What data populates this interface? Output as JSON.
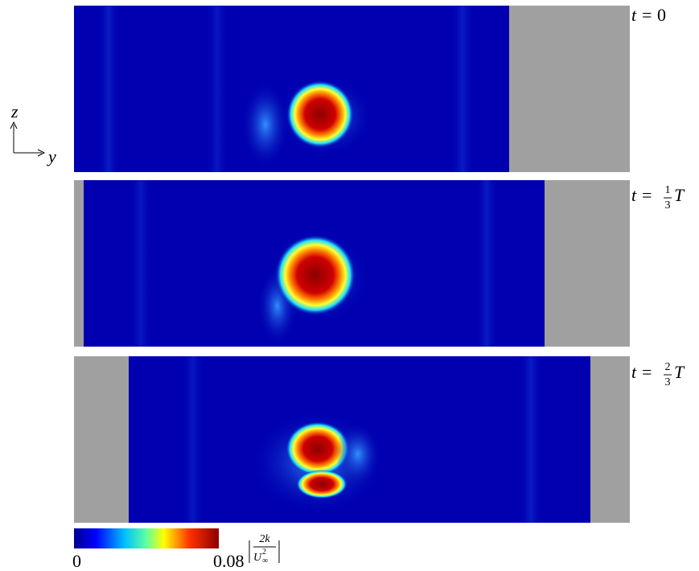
{
  "panels": [
    {
      "prefix": "t = ",
      "value": "0"
    },
    {
      "prefix": "t = ",
      "numerator": "1",
      "denominator": "3",
      "suffix": "T"
    },
    {
      "prefix": "t = ",
      "numerator": "2",
      "denominator": "3",
      "suffix": "T"
    }
  ],
  "axes": {
    "vertical": "z",
    "horizontal": "y"
  },
  "colorbar": {
    "min": "0",
    "max": "0.08",
    "numerator": "2k",
    "denominator": "U",
    "denominator_sub": "∞",
    "denominator_sup": "2"
  }
}
